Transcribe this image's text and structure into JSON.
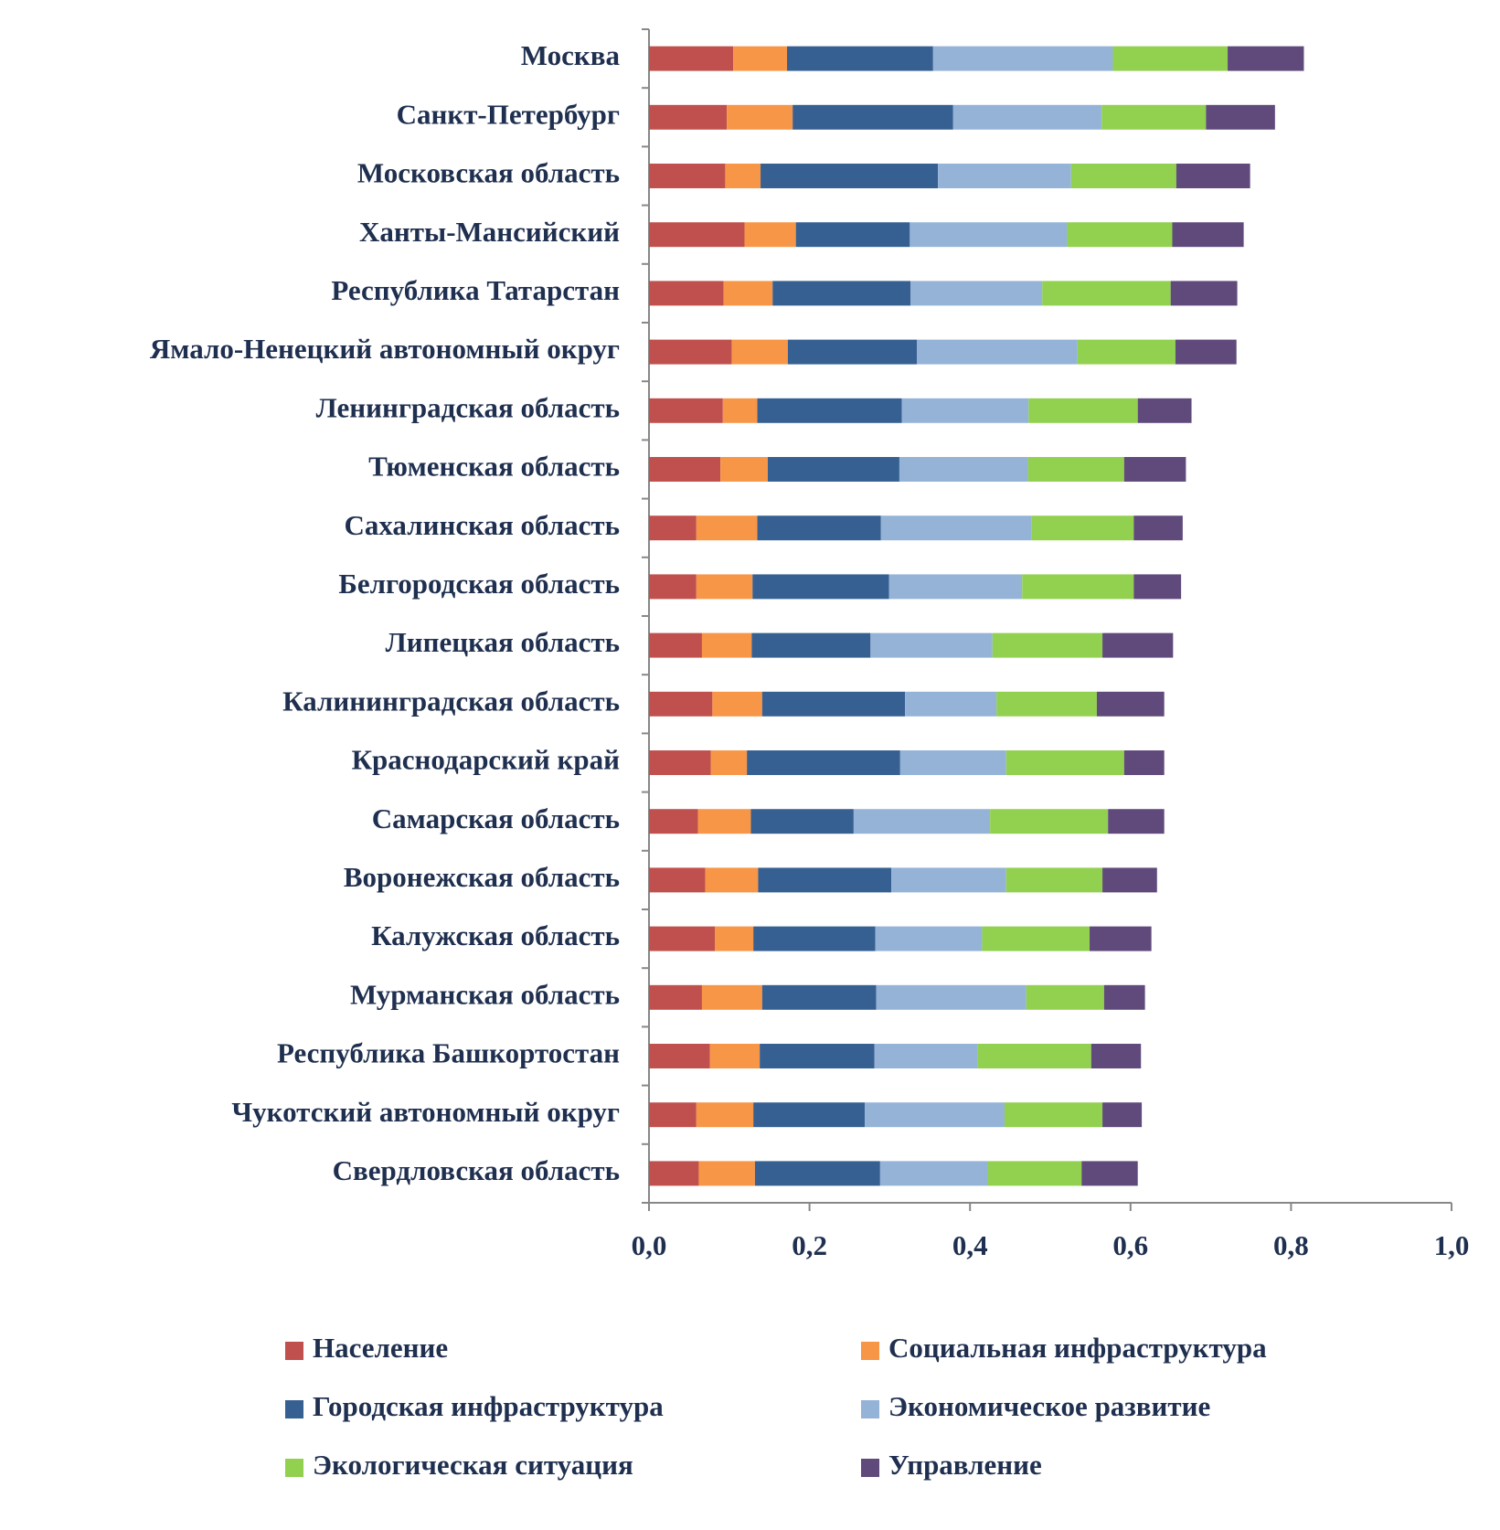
{
  "chart_data": {
    "type": "stacked-bar-horizontal",
    "categories": [
      "Москва",
      "Санкт-Петербург",
      "Московская область",
      "Ханты-Мансийский",
      "Республика Татарстан",
      "Ямало-Ненецкий автономный округ",
      "Ленинградская область",
      "Тюменская область",
      "Сахалинская область",
      "Белгородская область",
      "Липецкая область",
      "Калининградская область",
      "Краснодарский край",
      "Самарская область",
      "Воронежская область",
      "Калужская область",
      "Мурманская область",
      "Республика Башкортостан",
      "Чукотский автономный округ",
      "Свердловская область"
    ],
    "series": [
      {
        "name": "Население",
        "color": "#c0504d",
        "values": [
          0.105,
          0.097,
          0.095,
          0.119,
          0.093,
          0.103,
          0.092,
          0.089,
          0.059,
          0.059,
          0.066,
          0.079,
          0.077,
          0.061,
          0.07,
          0.082,
          0.066,
          0.076,
          0.059,
          0.062
        ]
      },
      {
        "name": "Социальная инфраструктура",
        "color": "#f79646",
        "values": [
          0.067,
          0.082,
          0.044,
          0.064,
          0.061,
          0.07,
          0.043,
          0.059,
          0.076,
          0.07,
          0.062,
          0.062,
          0.045,
          0.066,
          0.066,
          0.048,
          0.075,
          0.062,
          0.071,
          0.07
        ]
      },
      {
        "name": "Городская инфраструктура",
        "color": "#366092",
        "values": [
          0.182,
          0.2,
          0.221,
          0.142,
          0.172,
          0.161,
          0.18,
          0.164,
          0.154,
          0.17,
          0.148,
          0.178,
          0.191,
          0.128,
          0.166,
          0.152,
          0.142,
          0.143,
          0.139,
          0.156
        ]
      },
      {
        "name": "Экономическое развитие",
        "color": "#95b3d7",
        "values": [
          0.224,
          0.185,
          0.166,
          0.196,
          0.164,
          0.2,
          0.158,
          0.16,
          0.188,
          0.166,
          0.152,
          0.114,
          0.132,
          0.17,
          0.143,
          0.133,
          0.187,
          0.128,
          0.174,
          0.134
        ]
      },
      {
        "name": "Экологическая ситуация",
        "color": "#92d050",
        "values": [
          0.143,
          0.13,
          0.131,
          0.131,
          0.16,
          0.122,
          0.136,
          0.12,
          0.127,
          0.139,
          0.137,
          0.125,
          0.147,
          0.147,
          0.12,
          0.134,
          0.097,
          0.142,
          0.122,
          0.117
        ]
      },
      {
        "name": "Управление",
        "color": "#604a7b",
        "values": [
          0.095,
          0.086,
          0.092,
          0.089,
          0.083,
          0.076,
          0.067,
          0.077,
          0.061,
          0.059,
          0.088,
          0.084,
          0.05,
          0.07,
          0.068,
          0.077,
          0.051,
          0.062,
          0.049,
          0.07
        ]
      }
    ],
    "xlim": [
      0,
      1
    ],
    "xticks": [
      {
        "value": 0,
        "label": "0,0"
      },
      {
        "value": 0.2,
        "label": "0,2"
      },
      {
        "value": 0.4,
        "label": "0,4"
      },
      {
        "value": 0.6,
        "label": "0,6"
      },
      {
        "value": 0.8,
        "label": "0,8"
      },
      {
        "value": 1,
        "label": "1,0"
      }
    ],
    "legend": "bottom"
  }
}
